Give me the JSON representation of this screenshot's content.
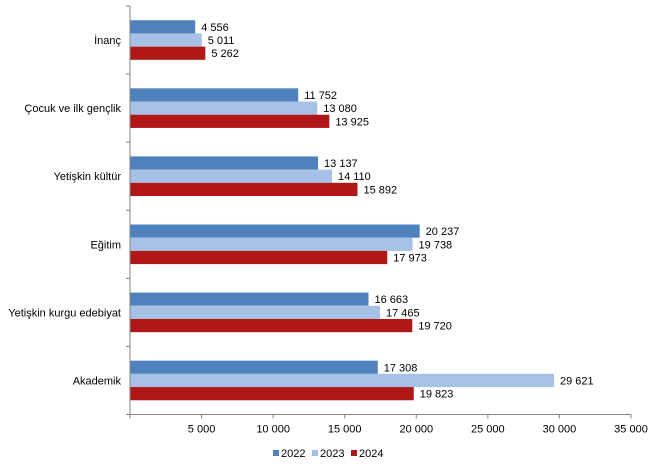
{
  "chart_data": {
    "type": "bar",
    "orientation": "horizontal",
    "title": "",
    "xlabel": "",
    "ylabel": "",
    "categories": [
      "İnanç",
      "Çocuk ve ilk gençlik",
      "Yetişkin kültür",
      "Eğitim",
      "Yetişkin kurgu edebiyat",
      "Akademik"
    ],
    "series": [
      {
        "name": "2022",
        "color": "#4F81BD",
        "values": [
          4556,
          11752,
          13137,
          20237,
          16663,
          17308
        ],
        "labels": [
          "4 556",
          "11 752",
          "13 137",
          "20 237",
          "16 663",
          "17 308"
        ]
      },
      {
        "name": "2023",
        "color": "#A7C0E5",
        "values": [
          5011,
          13080,
          14110,
          19738,
          17465,
          29621
        ],
        "labels": [
          "5 011",
          "13 080",
          "14 110",
          "19 738",
          "17 465",
          "29 621"
        ]
      },
      {
        "name": "2024",
        "color": "#B01818",
        "values": [
          5262,
          13925,
          15892,
          17973,
          19720,
          19823
        ],
        "labels": [
          "5 262",
          "13 925",
          "15 892",
          "17 973",
          "19 720",
          "19 823"
        ]
      }
    ],
    "xlim": [
      0,
      35000
    ],
    "xticks": [
      0,
      5000,
      10000,
      15000,
      20000,
      25000,
      30000,
      35000
    ],
    "xtick_labels": [
      "",
      "5 000",
      "10 000",
      "15 000",
      "20 000",
      "25 000",
      "30 000",
      "35 000"
    ],
    "grid": false,
    "legend_position": "bottom"
  }
}
